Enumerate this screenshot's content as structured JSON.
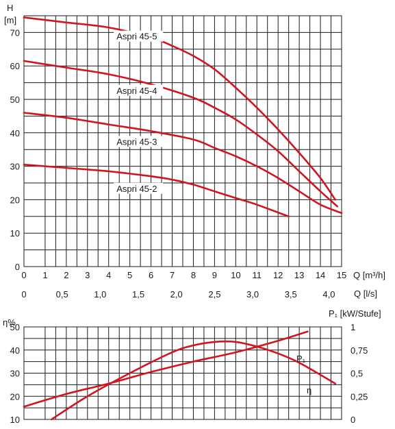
{
  "chart_data": [
    {
      "type": "line",
      "ylabel": "H",
      "yunit": "[m]",
      "xlabel_primary": "Q [m³/h]",
      "xlabel_secondary": "Q [l/s]",
      "xlim": [
        0,
        15
      ],
      "ylim": [
        0,
        75
      ],
      "yticks": [
        "0",
        "10",
        "20",
        "30",
        "40",
        "50",
        "60",
        "70"
      ],
      "xticks_m3h": [
        "0",
        "1",
        "2",
        "3",
        "4",
        "5",
        "6",
        "7",
        "8",
        "9",
        "10",
        "11",
        "12",
        "13",
        "14",
        "15"
      ],
      "xticks_ls": [
        "0",
        "0,5",
        "1,0",
        "1,5",
        "2,0",
        "2,5",
        "3,0",
        "3,5",
        "4,0"
      ],
      "grid": true,
      "series": [
        {
          "name": "Aspri 45-5",
          "x": [
            0,
            2,
            4,
            6,
            7,
            8,
            9,
            10,
            11,
            12,
            13,
            14,
            14.7
          ],
          "y": [
            74.5,
            73,
            71.5,
            68.5,
            66,
            63,
            59,
            53.5,
            47.5,
            41,
            34,
            26.5,
            20
          ]
        },
        {
          "name": "Aspri 45-4",
          "x": [
            0,
            2,
            4,
            6,
            8,
            9,
            10,
            11,
            12,
            13,
            14,
            14.8
          ],
          "y": [
            61.5,
            59.5,
            57.5,
            54.5,
            50.5,
            47.5,
            44,
            39.5,
            34.5,
            28.5,
            22.5,
            18
          ]
        },
        {
          "name": "Aspri 45-3",
          "x": [
            0,
            2,
            4,
            6,
            8,
            9,
            10,
            11,
            12,
            13,
            14,
            15
          ],
          "y": [
            46,
            44.5,
            42.5,
            40.5,
            38,
            35.5,
            33,
            30,
            26.5,
            22.5,
            18.5,
            16
          ]
        },
        {
          "name": "Aspri 45-2",
          "x": [
            0,
            2,
            4,
            6,
            7,
            8,
            9,
            10,
            11,
            12.5
          ],
          "y": [
            30.5,
            29.5,
            28.5,
            27,
            26,
            24.5,
            22.5,
            20.5,
            18.5,
            15
          ]
        }
      ]
    },
    {
      "type": "line",
      "ylabel": "η%",
      "ylabel_right": "P₁ [kW/Stufe]",
      "xlim": [
        0,
        15
      ],
      "ylim": [
        10,
        50
      ],
      "yticks_left": [
        "10",
        "20",
        "30",
        "40",
        "50"
      ],
      "yticks_right": [
        "0",
        "0,25",
        "0,5",
        "0,75",
        "1"
      ],
      "grid": true,
      "series": [
        {
          "name": "P₁",
          "x": [
            0,
            2,
            4,
            6,
            8,
            10,
            12,
            13.4
          ],
          "y": [
            15.5,
            21,
            25.5,
            30.5,
            35,
            39,
            44,
            48
          ]
        },
        {
          "name": "η",
          "x": [
            1.3,
            3,
            5,
            7,
            8,
            9,
            10,
            11,
            12,
            13,
            14.7
          ],
          "y": [
            10,
            20,
            30,
            39,
            42,
            43.5,
            43.5,
            41.5,
            38.5,
            34.5,
            25.5
          ]
        }
      ]
    }
  ]
}
